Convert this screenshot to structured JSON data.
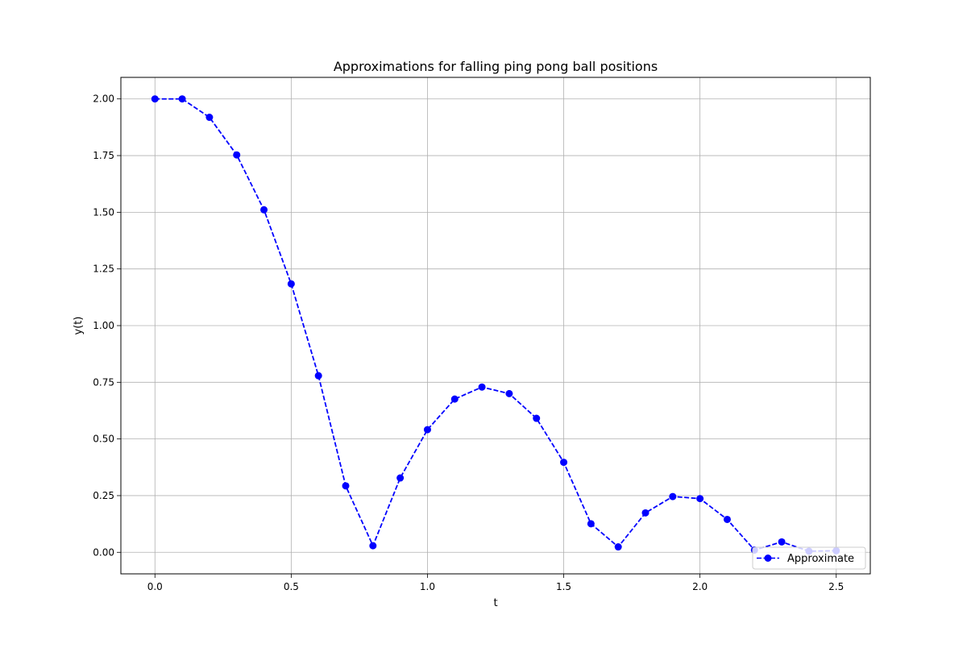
{
  "chart_data": {
    "type": "line",
    "title": "Approximations for falling ping pong ball positions",
    "xlabel": "t",
    "ylabel": "y(t)",
    "xlim": [
      -0.125,
      2.625
    ],
    "ylim": [
      -0.095,
      2.095
    ],
    "x_ticks": [
      0.0,
      0.5,
      1.0,
      1.5,
      2.0,
      2.5
    ],
    "x_tick_labels": [
      "0.0",
      "0.5",
      "1.0",
      "1.5",
      "2.0",
      "2.5"
    ],
    "y_ticks": [
      0.0,
      0.25,
      0.5,
      0.75,
      1.0,
      1.25,
      1.5,
      1.75,
      2.0
    ],
    "y_tick_labels": [
      "0.00",
      "0.25",
      "0.50",
      "0.75",
      "1.00",
      "1.25",
      "1.50",
      "1.75",
      "2.00"
    ],
    "grid": true,
    "legend_position": "lower-right",
    "series": [
      {
        "name": "Approximate",
        "color": "#0000ff",
        "line_style": "dashed",
        "marker": "circle",
        "x": [
          0.0,
          0.1,
          0.2,
          0.3,
          0.4,
          0.5,
          0.6,
          0.7,
          0.8,
          0.9,
          1.0,
          1.1,
          1.2,
          1.3,
          1.4,
          1.5,
          1.6,
          1.7,
          1.8,
          1.9,
          2.0,
          2.1,
          2.2,
          2.3,
          2.4,
          2.5
        ],
        "y": [
          2.0,
          2.0,
          1.919,
          1.753,
          1.511,
          1.184,
          0.779,
          0.293,
          0.029,
          0.328,
          0.541,
          0.676,
          0.729,
          0.7,
          0.591,
          0.397,
          0.126,
          0.024,
          0.174,
          0.246,
          0.237,
          0.145,
          0.01,
          0.046,
          0.005,
          0.007
        ]
      }
    ]
  }
}
